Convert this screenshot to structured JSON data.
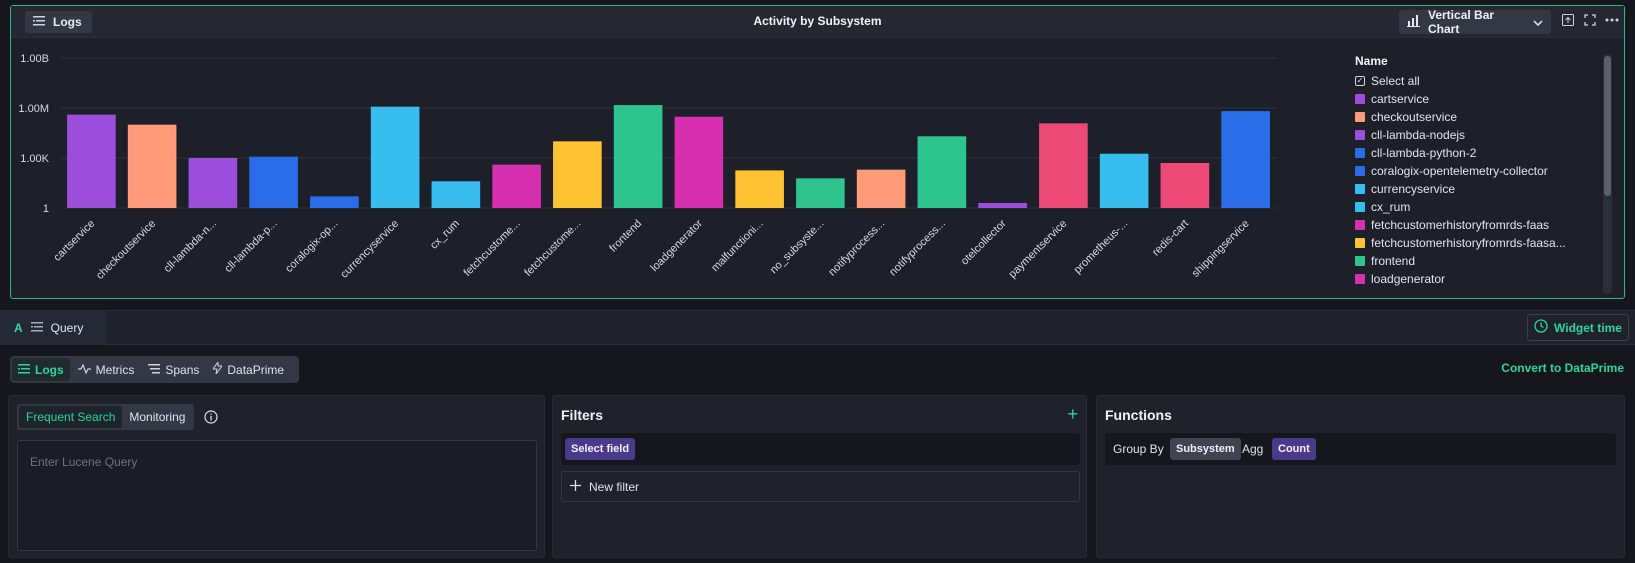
{
  "widget": {
    "tag_label": "Logs",
    "title": "Activity by Subsystem",
    "chart_type_label": "Vertical Bar Chart"
  },
  "chart_data": {
    "type": "bar",
    "title": "Activity by Subsystem",
    "xlabel": "",
    "ylabel": "",
    "y_scale": "log",
    "y_ticks": [
      "1",
      "1.00K",
      "1.00M",
      "1.00B"
    ],
    "ylim": [
      1,
      1000000000
    ],
    "grid": true,
    "legend_position": "right",
    "categories": [
      "cartservice",
      "checkoutservice",
      "cll-lambda-n...",
      "cll-lambda-p...",
      "coralogix-op...",
      "currencyservice",
      "cx_rum",
      "fetchcustome...",
      "fetchcustome...",
      "frontend",
      "loadgenerator",
      "malfunctioni...",
      "no_subsyste...",
      "notifyprocess...",
      "notifyprocess...",
      "otelcollector",
      "paymentservice",
      "prometheus-...",
      "redis-cart",
      "shippingservice"
    ],
    "values": [
      400000,
      100000,
      1000,
      1200,
      5,
      1200000,
      40,
      400,
      10000,
      1500000,
      300000,
      180,
      60,
      200,
      20000,
      2,
      120000,
      1800,
      500,
      650000
    ],
    "colors": [
      "#9b4ddb",
      "#ff9a78",
      "#9b4ddb",
      "#2a6de8",
      "#2a6de8",
      "#38bdf0",
      "#38bdf0",
      "#d62fb0",
      "#ffc233",
      "#2ec48e",
      "#d62fb0",
      "#ffc233",
      "#2ec48e",
      "#ff9a78",
      "#2ec48e",
      "#9b4ddb",
      "#ee4a78",
      "#38bdf0",
      "#ee4a78",
      "#2a6de8"
    ]
  },
  "legend": {
    "title": "Name",
    "select_all": "Select all",
    "items": [
      {
        "label": "cartservice",
        "color": "#9b4ddb"
      },
      {
        "label": "checkoutservice",
        "color": "#ff9a78"
      },
      {
        "label": "cll-lambda-nodejs",
        "color": "#9b4ddb"
      },
      {
        "label": "cll-lambda-python-2",
        "color": "#2a6de8"
      },
      {
        "label": "coralogix-opentelemetry-collector",
        "color": "#2a6de8"
      },
      {
        "label": "currencyservice",
        "color": "#38bdf0"
      },
      {
        "label": "cx_rum",
        "color": "#38bdf0"
      },
      {
        "label": "fetchcustomerhistoryfromrds-faas",
        "color": "#d62fb0"
      },
      {
        "label": "fetchcustomerhistoryfromrds-faasa...",
        "color": "#ffc233"
      },
      {
        "label": "frontend",
        "color": "#2ec48e"
      },
      {
        "label": "loadgenerator",
        "color": "#d62fb0"
      }
    ]
  },
  "query_bar": {
    "tab_letter": "A",
    "tab_label": "Query",
    "widget_time_label": "Widget time"
  },
  "sources": {
    "tabs": [
      {
        "label": "Logs"
      },
      {
        "label": "Metrics"
      },
      {
        "label": "Spans"
      },
      {
        "label": "DataPrime"
      }
    ],
    "convert_label": "Convert to DataPrime"
  },
  "query_panel": {
    "seg_active": "Frequent Search",
    "seg_other": "Monitoring",
    "placeholder": "Enter Lucene Query"
  },
  "filters_panel": {
    "title": "Filters",
    "select_field": "Select field",
    "new_filter": "New filter"
  },
  "functions_panel": {
    "title": "Functions",
    "group_by_label": "Group By",
    "group_by_value": "Subsystem",
    "agg_label": "Agg",
    "agg_value": "Count"
  }
}
